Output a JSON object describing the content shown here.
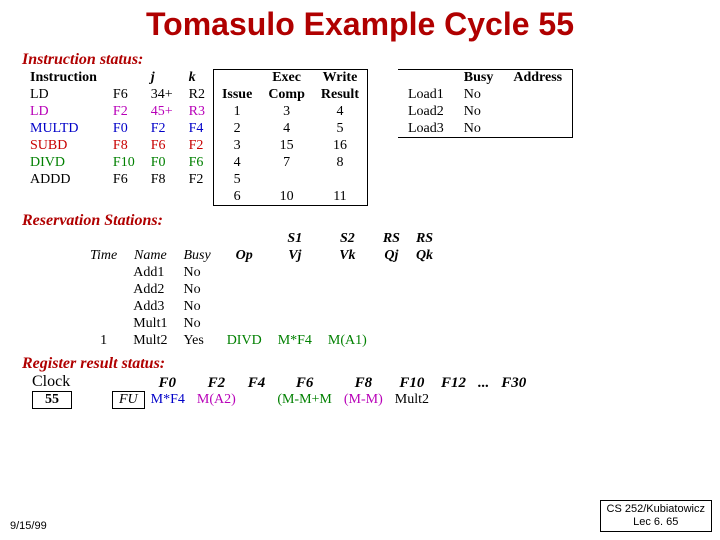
{
  "title": "Tomasulo Example Cycle 55",
  "sections": {
    "instr_status": "Instruction status:",
    "res_stations": "Reservation Stations:",
    "reg_result": "Register result status:"
  },
  "is_headers": {
    "instruction": "Instruction",
    "j": "j",
    "k": "k",
    "issue": "Issue",
    "exec": "Exec",
    "comp": "Comp",
    "write": "Write",
    "result": "Result"
  },
  "is_rows": [
    {
      "op": "LD",
      "dst": "F6",
      "j": "34+",
      "k": "R2",
      "issue": "1",
      "comp": "3",
      "write": "4",
      "color": "#000000"
    },
    {
      "op": "LD",
      "dst": "F2",
      "j": "45+",
      "k": "R3",
      "issue": "2",
      "comp": "4",
      "write": "5",
      "color": "#b800b8"
    },
    {
      "op": "MULTD",
      "dst": "F0",
      "j": "F2",
      "k": "F4",
      "issue": "3",
      "comp": "15",
      "write": "16",
      "color": "#0000c8"
    },
    {
      "op": "SUBD",
      "dst": "F8",
      "j": "F6",
      "k": "F2",
      "issue": "4",
      "comp": "7",
      "write": "8",
      "color": "#c80000"
    },
    {
      "op": "DIVD",
      "dst": "F10",
      "j": "F0",
      "k": "F6",
      "issue": "5",
      "comp": "",
      "write": "",
      "color": "#008000"
    },
    {
      "op": "ADDD",
      "dst": "F6",
      "j": "F8",
      "k": "F2",
      "issue": "6",
      "comp": "10",
      "write": "11",
      "color": "#000000"
    }
  ],
  "load_headers": {
    "blank": "",
    "busy": "Busy",
    "addr": "Address"
  },
  "load_rows": [
    {
      "name": "Load1",
      "busy": "No",
      "addr": ""
    },
    {
      "name": "Load2",
      "busy": "No",
      "addr": ""
    },
    {
      "name": "Load3",
      "busy": "No",
      "addr": ""
    }
  ],
  "rs_headers": {
    "time": "Time",
    "name": "Name",
    "busy": "Busy",
    "op": "Op",
    "s1": "S1",
    "vj": "Vj",
    "s2": "S2",
    "vk": "Vk",
    "rsqj": "RS",
    "qj": "Qj",
    "rsqk": "RS",
    "qk": "Qk"
  },
  "rs_rows": [
    {
      "time": "",
      "name": "Add1",
      "busy": "No",
      "op": "",
      "vj": "",
      "vk": "",
      "qj": "",
      "qk": "",
      "color": "#000000"
    },
    {
      "time": "",
      "name": "Add2",
      "busy": "No",
      "op": "",
      "vj": "",
      "vk": "",
      "qj": "",
      "qk": "",
      "color": "#000000"
    },
    {
      "time": "",
      "name": "Add3",
      "busy": "No",
      "op": "",
      "vj": "",
      "vk": "",
      "qj": "",
      "qk": "",
      "color": "#000000"
    },
    {
      "time": "",
      "name": "Mult1",
      "busy": "No",
      "op": "",
      "vj": "",
      "vk": "",
      "qj": "",
      "qk": "",
      "color": "#000000"
    },
    {
      "time": "1",
      "name": "Mult2",
      "busy": "Yes",
      "op": "DIVD",
      "vj": "M*F4",
      "vk": "M(A1)",
      "qj": "",
      "qk": "",
      "color": "#008000"
    }
  ],
  "clock": {
    "label": "Clock",
    "value": "55"
  },
  "rr_headers": [
    "F0",
    "F2",
    "F4",
    "F6",
    "F8",
    "F10",
    "F12",
    "...",
    "F30"
  ],
  "rr_row_label": "FU",
  "rr_values": [
    {
      "v": "M*F4",
      "color": "#0000c8"
    },
    {
      "v": "M(A2)",
      "color": "#b800b8"
    },
    {
      "v": "",
      "color": "#000000"
    },
    {
      "v": "(M-M+M",
      "color": "#008000"
    },
    {
      "v": "(M-M)",
      "color": "#b800b8"
    },
    {
      "v": "Mult2",
      "color": "#000000"
    },
    {
      "v": "",
      "color": "#000000"
    },
    {
      "v": "",
      "color": "#000000"
    },
    {
      "v": "",
      "color": "#000000"
    }
  ],
  "footer": {
    "date": "9/15/99",
    "course": "CS 252/Kubiatowicz",
    "lec": "Lec  6. 65"
  },
  "colors": {
    "title": "#b00000",
    "section": "#b00000",
    "border": "#000000",
    "bg": "#ffffff"
  }
}
